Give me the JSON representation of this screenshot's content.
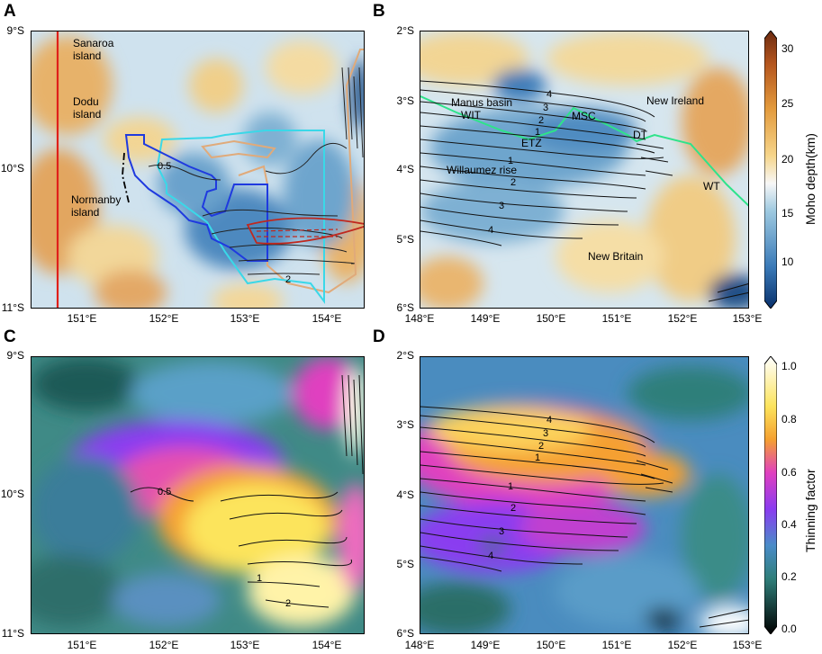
{
  "panels": {
    "A": {
      "letter": "A",
      "yticks": [
        "9°S",
        "10°S",
        "11°S"
      ],
      "xticks": [
        "151°E",
        "152°E",
        "153°E",
        "154°E"
      ],
      "labels": {
        "sanaroa": "Sanaroa\nisland",
        "dodu": "Dodu\nisland",
        "normanby": "Normanby\nisland",
        "c05": "0.5",
        "c2": "2"
      }
    },
    "B": {
      "letter": "B",
      "yticks": [
        "2°S",
        "3°S",
        "4°S",
        "5°S",
        "6°S"
      ],
      "xticks": [
        "148°E",
        "149°E",
        "150°E",
        "151°E",
        "152°E",
        "153°E"
      ],
      "labels": {
        "manus": "Manus basin",
        "wit": "WIT",
        "msc": "MSC",
        "etz": "ETZ",
        "dt": "DT",
        "newireland": "New Ireland",
        "willaumez": "Willaumez rise",
        "wt": "WT",
        "newbritain": "New Britain",
        "c1a": "1",
        "c2a": "2",
        "c3a": "3",
        "c4a": "4",
        "c1b": "1",
        "c2b": "2",
        "c3b": "3",
        "c4b": "4"
      }
    },
    "C": {
      "letter": "C",
      "yticks": [
        "9°S",
        "10°S",
        "11°S"
      ],
      "xticks": [
        "151°E",
        "152°E",
        "153°E",
        "154°E"
      ],
      "labels": {
        "c05": "0.5",
        "c1": "1",
        "c2": "2"
      }
    },
    "D": {
      "letter": "D",
      "yticks": [
        "2°S",
        "3°S",
        "4°S",
        "5°S",
        "6°S"
      ],
      "xticks": [
        "148°E",
        "149°E",
        "150°E",
        "151°E",
        "152°E",
        "153°E"
      ],
      "labels": {
        "c1a": "1",
        "c2a": "2",
        "c3a": "3",
        "c4a": "4",
        "c1b": "1",
        "c2b": "2",
        "c3b": "3",
        "c4b": "4"
      }
    }
  },
  "colorbars": {
    "moho": {
      "title": "Moho depth(km)",
      "ticks": [
        "30",
        "25",
        "20",
        "15",
        "10"
      ],
      "colors": [
        "#08306b",
        "#3a7ab8",
        "#9dc9e0",
        "#f7f7f7",
        "#f6d58a",
        "#e39a3c",
        "#b5561e",
        "#6b2a10"
      ]
    },
    "thinning": {
      "title": "Thinning factor",
      "ticks": [
        "1.0",
        "0.8",
        "0.6",
        "0.4",
        "0.2",
        "0.0"
      ],
      "colors": [
        "#000000",
        "#2f7f7a",
        "#4a8cc9",
        "#8a3cf0",
        "#e040c0",
        "#f5a030",
        "#fce45c",
        "#ffffff"
      ]
    }
  }
}
